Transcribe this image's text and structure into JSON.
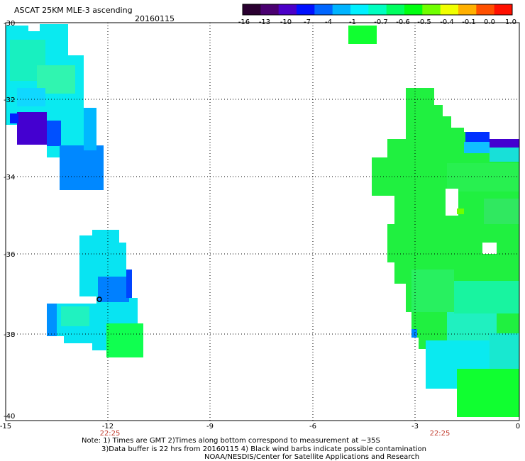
{
  "header": {
    "title": "ASCAT 25KM MLE-3 ascending",
    "date": "20160115"
  },
  "colorbar": {
    "labels": [
      "-16",
      "-13",
      "-10",
      "-7",
      "-4",
      "-1",
      "-0.7",
      "-0.6",
      "-0.5",
      "-0.4",
      "-0.1",
      "0.0",
      "1.0"
    ],
    "colors": [
      "#2a0030",
      "#4a0070",
      "#4b00c8",
      "#0010ff",
      "#0066ff",
      "#00b4ff",
      "#00f0ff",
      "#00ffc0",
      "#00ff60",
      "#00ff10",
      "#70ff00",
      "#f0ff00",
      "#ffb000",
      "#ff5000",
      "#ff1000"
    ]
  },
  "axes": {
    "x_labels": [
      "-15",
      "-12",
      "-9",
      "-6",
      "-3",
      "0"
    ],
    "y_labels": [
      "-30",
      "-32",
      "-34",
      "-36",
      "-38",
      "-40"
    ],
    "time_labels": [
      "22:25",
      "22:25"
    ]
  },
  "map_data": {
    "lon_range": [
      -15,
      0
    ],
    "lat_range": [
      -40,
      -30
    ],
    "grid": true
  },
  "notes": {
    "line1": "Note: 1) Times are GMT 2)Times along bottom correspond to measurement at ~35S",
    "line2": "3)Data buffer is 22 hrs from 20160115 4) Black wind barbs indicate possible contamination",
    "line3": "NOAA/NESDIS/Center for Satellite Applications and Research"
  }
}
